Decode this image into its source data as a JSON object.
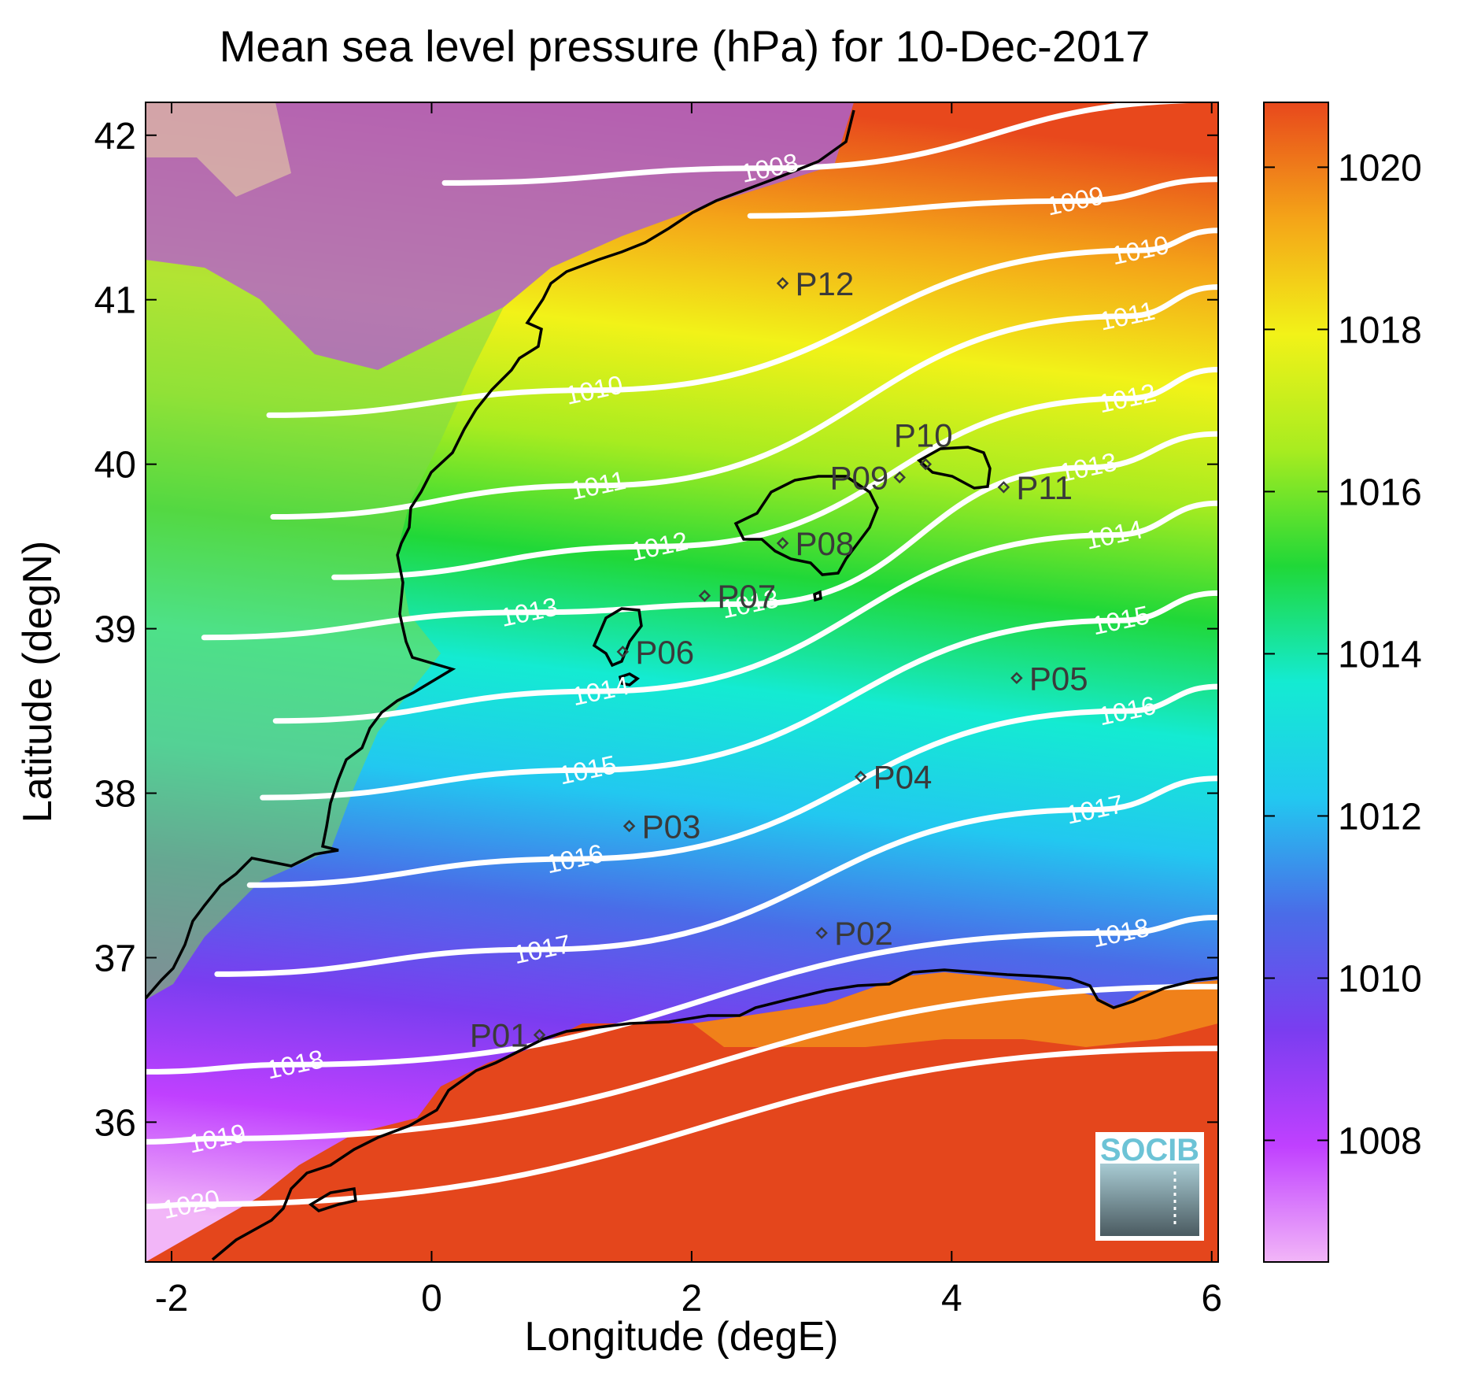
{
  "title": "Mean sea level pressure (hPa) for 10-Dec-2017",
  "xlabel": "Longitude (degE)",
  "ylabel": "Latitude (degN)",
  "xlim": [
    -2.2,
    6.05
  ],
  "ylim": [
    35.15,
    42.2
  ],
  "xticks": [
    -2,
    0,
    2,
    4,
    6
  ],
  "yticks": [
    36,
    37,
    38,
    39,
    40,
    41,
    42
  ],
  "colorbar": {
    "limits": [
      1006.5,
      1020.8
    ],
    "ticks": [
      1008,
      1010,
      1012,
      1014,
      1016,
      1018,
      1020
    ],
    "colors": [
      "#f2b6f8",
      "#c040ff",
      "#7a3df0",
      "#4a6ce8",
      "#22c8f0",
      "#14ebd2",
      "#20d838",
      "#a8ec20",
      "#f2f218",
      "#f4a418",
      "#e8481c"
    ]
  },
  "contours": [
    {
      "label": "1008",
      "label_lon": 2.6,
      "label_lat": 41.8
    },
    {
      "label": "1009",
      "label_lon": 4.95,
      "label_lat": 41.6
    },
    {
      "label": "1010",
      "label_lon": 1.25,
      "label_lat": 40.45
    },
    {
      "label": "1010",
      "label_lon": 5.45,
      "label_lat": 41.3
    },
    {
      "label": "1011",
      "label_lon": 1.28,
      "label_lat": 39.87
    },
    {
      "label": "1011",
      "label_lon": 5.35,
      "label_lat": 40.9
    },
    {
      "label": "1012",
      "label_lon": 1.75,
      "label_lat": 39.5
    },
    {
      "label": "1012",
      "label_lon": 5.35,
      "label_lat": 40.4
    },
    {
      "label": "1013",
      "label_lon": 0.75,
      "label_lat": 39.1
    },
    {
      "label": "1013",
      "label_lon": 2.45,
      "label_lat": 39.15
    },
    {
      "label": "1013",
      "label_lon": 5.05,
      "label_lat": 39.98
    },
    {
      "label": "1014",
      "label_lon": 1.3,
      "label_lat": 38.62
    },
    {
      "label": "1014",
      "label_lon": 5.25,
      "label_lat": 39.57
    },
    {
      "label": "1015",
      "label_lon": 1.2,
      "label_lat": 38.14
    },
    {
      "label": "1015",
      "label_lon": 5.3,
      "label_lat": 39.05
    },
    {
      "label": "1016",
      "label_lon": 1.1,
      "label_lat": 37.6
    },
    {
      "label": "1016",
      "label_lon": 5.35,
      "label_lat": 38.5
    },
    {
      "label": "1017",
      "label_lon": 0.85,
      "label_lat": 37.05
    },
    {
      "label": "1017",
      "label_lon": 5.1,
      "label_lat": 37.9
    },
    {
      "label": "1018",
      "label_lon": -1.05,
      "label_lat": 36.35
    },
    {
      "label": "1018",
      "label_lon": 5.3,
      "label_lat": 37.15
    },
    {
      "label": "1019",
      "label_lon": -1.65,
      "label_lat": 35.9
    },
    {
      "label": "1020",
      "label_lon": -1.85,
      "label_lat": 35.5
    }
  ],
  "stations": [
    {
      "name": "P01",
      "lon": 0.83,
      "lat": 36.53,
      "label_side": "left"
    },
    {
      "name": "P02",
      "lon": 3.0,
      "lat": 37.15,
      "label_side": "right"
    },
    {
      "name": "P03",
      "lon": 1.52,
      "lat": 37.8,
      "label_side": "right"
    },
    {
      "name": "P04",
      "lon": 3.3,
      "lat": 38.1,
      "label_side": "right"
    },
    {
      "name": "P05",
      "lon": 4.5,
      "lat": 38.7,
      "label_side": "right"
    },
    {
      "name": "P06",
      "lon": 1.47,
      "lat": 38.86,
      "label_side": "right"
    },
    {
      "name": "P07",
      "lon": 2.1,
      "lat": 39.2,
      "label_side": "right"
    },
    {
      "name": "P08",
      "lon": 2.7,
      "lat": 39.52,
      "label_side": "right"
    },
    {
      "name": "P09",
      "lon": 3.6,
      "lat": 39.92,
      "label_side": "left"
    },
    {
      "name": "P10",
      "lon": 3.8,
      "lat": 40.0,
      "label_side": "above"
    },
    {
      "name": "P11",
      "lon": 4.4,
      "lat": 39.86,
      "label_side": "right"
    },
    {
      "name": "P12",
      "lon": 2.7,
      "lat": 41.1,
      "label_side": "right"
    }
  ],
  "logo": {
    "text": "SOCIB"
  }
}
